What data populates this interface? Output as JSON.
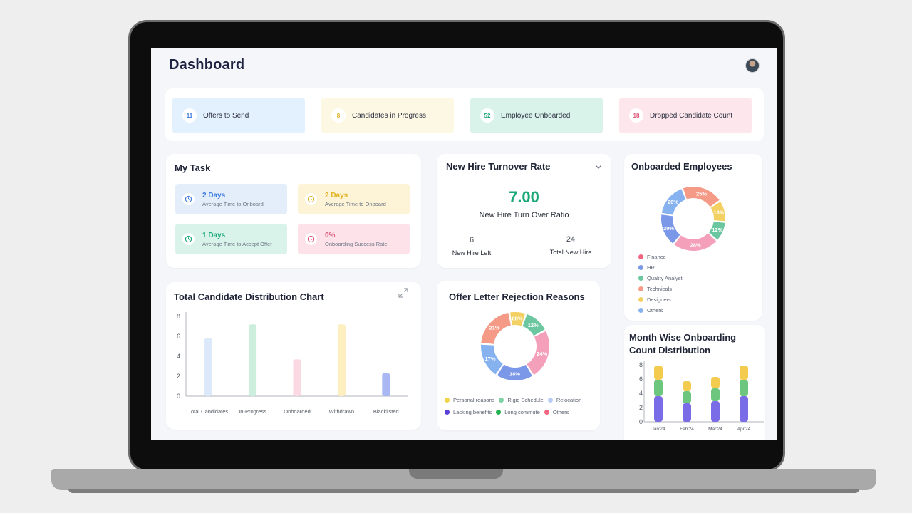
{
  "header": {
    "title": "Dashboard"
  },
  "stats": [
    {
      "count": "11",
      "label": "Offers to Send",
      "bg": "#e3f0fd",
      "num_color": "#3d7be0"
    },
    {
      "count": "8",
      "label": "Candidates in Progress",
      "bg": "#fdf8e4",
      "num_color": "#e0b322"
    },
    {
      "count": "52",
      "label": "Employee Onboarded",
      "bg": "#d9f3ea",
      "num_color": "#1aa877"
    },
    {
      "count": "18",
      "label": "Dropped Candidate Count",
      "bg": "#fde6ec",
      "num_color": "#e05778"
    }
  ],
  "my_task": {
    "title": "My Task",
    "items": [
      {
        "value": "2 Days",
        "desc": "Average Time to Onboard",
        "bg": "#e3eefa",
        "color": "#3d7be0"
      },
      {
        "value": "2 Days",
        "desc": "Average Time to Onboard",
        "bg": "#fdf3d6",
        "color": "#e0b322"
      },
      {
        "value": "1 Days",
        "desc": "Average Time to Accept Offer",
        "bg": "#d9f3ea",
        "color": "#1aa877"
      },
      {
        "value": "0%",
        "desc": "Onboarding Success Rate",
        "bg": "#fde2ea",
        "color": "#e05778"
      }
    ]
  },
  "turnover": {
    "title": "New Hire Turnover Rate",
    "value": "7.00",
    "subtitle": "New Hire Turn Over Ratio",
    "left_value": "6",
    "left_label": "New Hire Left",
    "total_value": "24",
    "total_label": "Total New Hire"
  },
  "onboarded": {
    "title": "Onboarded Employees",
    "legend": [
      {
        "label": "Finance",
        "color": "#f0667f"
      },
      {
        "label": "HR",
        "color": "#7b97e8"
      },
      {
        "label": "Quality Analyst",
        "color": "#6cc7a0"
      },
      {
        "label": "Technicals",
        "color": "#f49a86"
      },
      {
        "label": "Designers",
        "color": "#f3d062"
      },
      {
        "label": "Others",
        "color": "#86b2f0"
      }
    ]
  },
  "rejection": {
    "title": "Offer Letter Rejection Reasons",
    "legend": [
      {
        "label": "Personal reasons",
        "color": "#f3d446"
      },
      {
        "label": "Rigid Schedule",
        "color": "#7fd0a4"
      },
      {
        "label": "Relocation",
        "color": "#b7cdf5"
      },
      {
        "label": "Lacking benefits",
        "color": "#5a3fd8"
      },
      {
        "label": "Long commute",
        "color": "#20b24e"
      },
      {
        "label": "Others",
        "color": "#f0667f"
      }
    ]
  },
  "month_wise": {
    "title_line1": "Month Wise Onboarding",
    "title_line2": "Count Distribution"
  },
  "distribution": {
    "title": "Total Candidate Distribution Chart"
  },
  "chart_data": [
    {
      "id": "candidate_distribution",
      "type": "bar",
      "title": "Total Candidate Distribution Chart",
      "categories": [
        "Total Candidates",
        "In-Progress",
        "Onboarded",
        "Withdrawn",
        "Blacklisted"
      ],
      "values": [
        5.8,
        7.2,
        3.7,
        7.2,
        2.3
      ],
      "colors": [
        "#dbe9fb",
        "#cdeedd",
        "#fbd9e2",
        "#fdefc0",
        "#a9b8f2"
      ],
      "yticks": [
        0,
        2,
        4,
        6,
        8
      ],
      "ylim": [
        0,
        8
      ]
    },
    {
      "id": "onboarded_employees",
      "type": "pie",
      "title": "Onboarded Employees",
      "slices": [
        {
          "label": "Technicals",
          "value": 25,
          "text": "25%",
          "color": "#f49a86"
        },
        {
          "label": "Designers",
          "value": 13,
          "text": "13%",
          "color": "#f3d062"
        },
        {
          "label": "Quality Analyst",
          "value": 12,
          "text": "12%",
          "color": "#6cc7a0"
        },
        {
          "label": "Finance",
          "value": 28,
          "text": "28%",
          "color": "#f4a0bb"
        },
        {
          "label": "HR",
          "value": 20,
          "text": "20%",
          "color": "#7b97e8"
        },
        {
          "label": "Others",
          "value": 20,
          "text": "20%",
          "color": "#86b2f0"
        }
      ]
    },
    {
      "id": "rejection_reasons",
      "type": "pie",
      "title": "Offer Letter Rejection Reasons",
      "slices": [
        {
          "label": "Personal reasons",
          "value": 8,
          "text": "08%",
          "color": "#f3d062"
        },
        {
          "label": "Rigid Schedule",
          "value": 12,
          "text": "12%",
          "color": "#6cc7a0"
        },
        {
          "label": "Others",
          "value": 24,
          "text": "24%",
          "color": "#f4a0bb"
        },
        {
          "label": "Lacking benefits",
          "value": 18,
          "text": "18%",
          "color": "#7b97e8"
        },
        {
          "label": "Relocation",
          "value": 17,
          "text": "17%",
          "color": "#86b2f0"
        },
        {
          "label": "Long commute",
          "value": 21,
          "text": "21%",
          "color": "#f49a86"
        }
      ]
    },
    {
      "id": "month_wise_onboarding",
      "type": "bar",
      "title": "Month Wise Onboarding Count Distribution",
      "categories": [
        "Jan'24",
        "Feb'24",
        "Mar'24",
        "Apr'24"
      ],
      "series": [
        {
          "values": [
            3.6,
            2.6,
            2.9,
            3.6
          ],
          "color": "#7a6be6"
        },
        {
          "values": [
            2.3,
            1.7,
            1.8,
            2.3
          ],
          "color": "#6cc67e"
        },
        {
          "values": [
            2.0,
            1.4,
            1.6,
            2.0
          ],
          "color": "#f3cb4e"
        }
      ],
      "yticks": [
        0,
        2,
        4,
        6,
        8
      ],
      "ylim": [
        0,
        8
      ]
    }
  ]
}
